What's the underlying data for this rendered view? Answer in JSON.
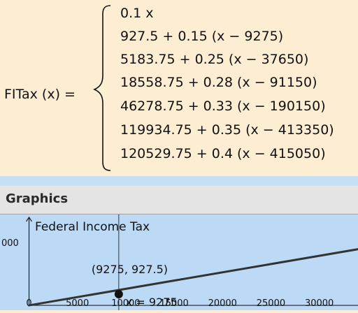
{
  "formula": {
    "lhs": "FITax (x) =",
    "cases": [
      "0.1 x",
      "927.5 + 0.15  (x − 9275)",
      "5183.75 + 0.25  (x − 37650)",
      "18558.75 + 0.28  (x − 91150)",
      "46278.75 + 0.33  (x − 190150)",
      "119934.75 + 0.35  (x − 413350)",
      "120529.75 + 0.4  (x − 415050)"
    ]
  },
  "graphics": {
    "title": "Graphics",
    "plot_title": "Federal Income Tax",
    "point_label": "(9275, 927.5)",
    "vline_label": "x = 9275",
    "y_tick_label": "000",
    "x_ticks": [
      "0",
      "5000",
      "10000",
      "15000",
      "20000",
      "25000",
      "30000"
    ]
  },
  "colors": {
    "formula_bg": "#fdeed3",
    "graphics_bg": "#bcdaf5",
    "header_bg": "#e4e4e4",
    "curve": "#333333",
    "point": "#111111"
  },
  "chart_data": {
    "type": "line",
    "title": "Federal Income Tax",
    "x": [
      0,
      9275,
      34000
    ],
    "y": [
      0,
      927.5,
      4636.25
    ],
    "point": {
      "x": 9275,
      "y": 927.5
    },
    "vline_x": 9275,
    "x_ticks": [
      0,
      5000,
      10000,
      15000,
      20000,
      25000,
      30000
    ],
    "xlim": [
      -3000,
      34000
    ],
    "ylim": [
      -400,
      7500
    ],
    "grid": false
  }
}
